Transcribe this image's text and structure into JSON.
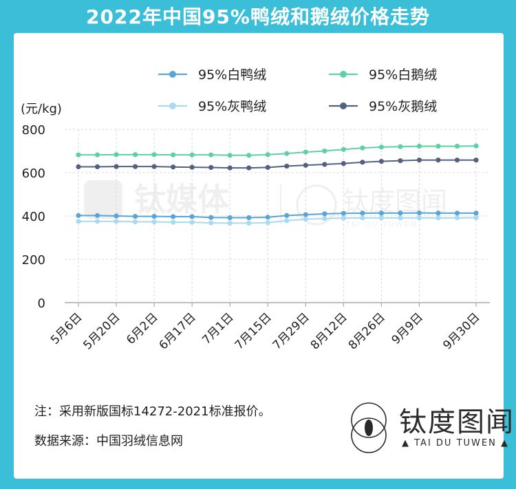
{
  "title": "2022年中国95%鸭绒和鹅绒价格走势",
  "notes": {
    "note": "注：采用新版国标14272-2021标准报价。",
    "source": "数据来源：中国羽绒信息网"
  },
  "watermarks": {
    "left": "钛媒体",
    "right": "钛度图闻",
    "right_sub": "TAI DU TUWEN"
  },
  "logo": {
    "name": "钛度图闻",
    "sub": "▲ TAI DU TUWEN ▲"
  },
  "colors": {
    "frame": "#3bbfd9",
    "white_duck": "#5aa5d6",
    "white_goose": "#5fcfa5",
    "grey_duck": "#a9daf2",
    "grey_goose": "#54607f",
    "axis_text": "#1e1e1e",
    "grid": "#d8d8d8"
  },
  "chart_data": {
    "type": "line",
    "ylabel": "(元/kg)",
    "ylim": [
      0,
      800
    ],
    "yticks": [
      0,
      200,
      400,
      600,
      800
    ],
    "grid": true,
    "legend_position": "top",
    "x_tick_labels": [
      "5月6日",
      "5月20日",
      "6月2日",
      "6月17日",
      "7月1日",
      "7月15日",
      "7月29日",
      "8月12日",
      "8月26日",
      "9月9日",
      "9月30日"
    ],
    "x_tick_index": [
      0,
      2,
      4,
      6,
      8,
      10,
      12,
      14,
      16,
      18,
      21
    ],
    "n_points": 22,
    "series": [
      {
        "name": "95%白鸭绒",
        "color": "#5aa5d6",
        "values": [
          402,
          402,
          400,
          398,
          398,
          397,
          397,
          393,
          392,
          392,
          394,
          402,
          406,
          410,
          412,
          413,
          413,
          413,
          414,
          413,
          413,
          413
        ]
      },
      {
        "name": "95%白鹅绒",
        "color": "#5fcfa5",
        "values": [
          682,
          682,
          683,
          683,
          683,
          682,
          682,
          682,
          680,
          680,
          683,
          688,
          695,
          700,
          707,
          714,
          718,
          720,
          722,
          722,
          722,
          723
        ]
      },
      {
        "name": "95%灰鸭绒",
        "color": "#a9daf2",
        "values": [
          375,
          375,
          375,
          373,
          373,
          371,
          371,
          368,
          367,
          367,
          369,
          378,
          385,
          388,
          390,
          391,
          391,
          391,
          391,
          391,
          391,
          392
        ]
      },
      {
        "name": "95%灰鹅绒",
        "color": "#54607f",
        "values": [
          627,
          627,
          628,
          628,
          628,
          626,
          625,
          624,
          622,
          622,
          624,
          630,
          634,
          638,
          642,
          648,
          652,
          655,
          658,
          658,
          658,
          658
        ]
      }
    ]
  }
}
